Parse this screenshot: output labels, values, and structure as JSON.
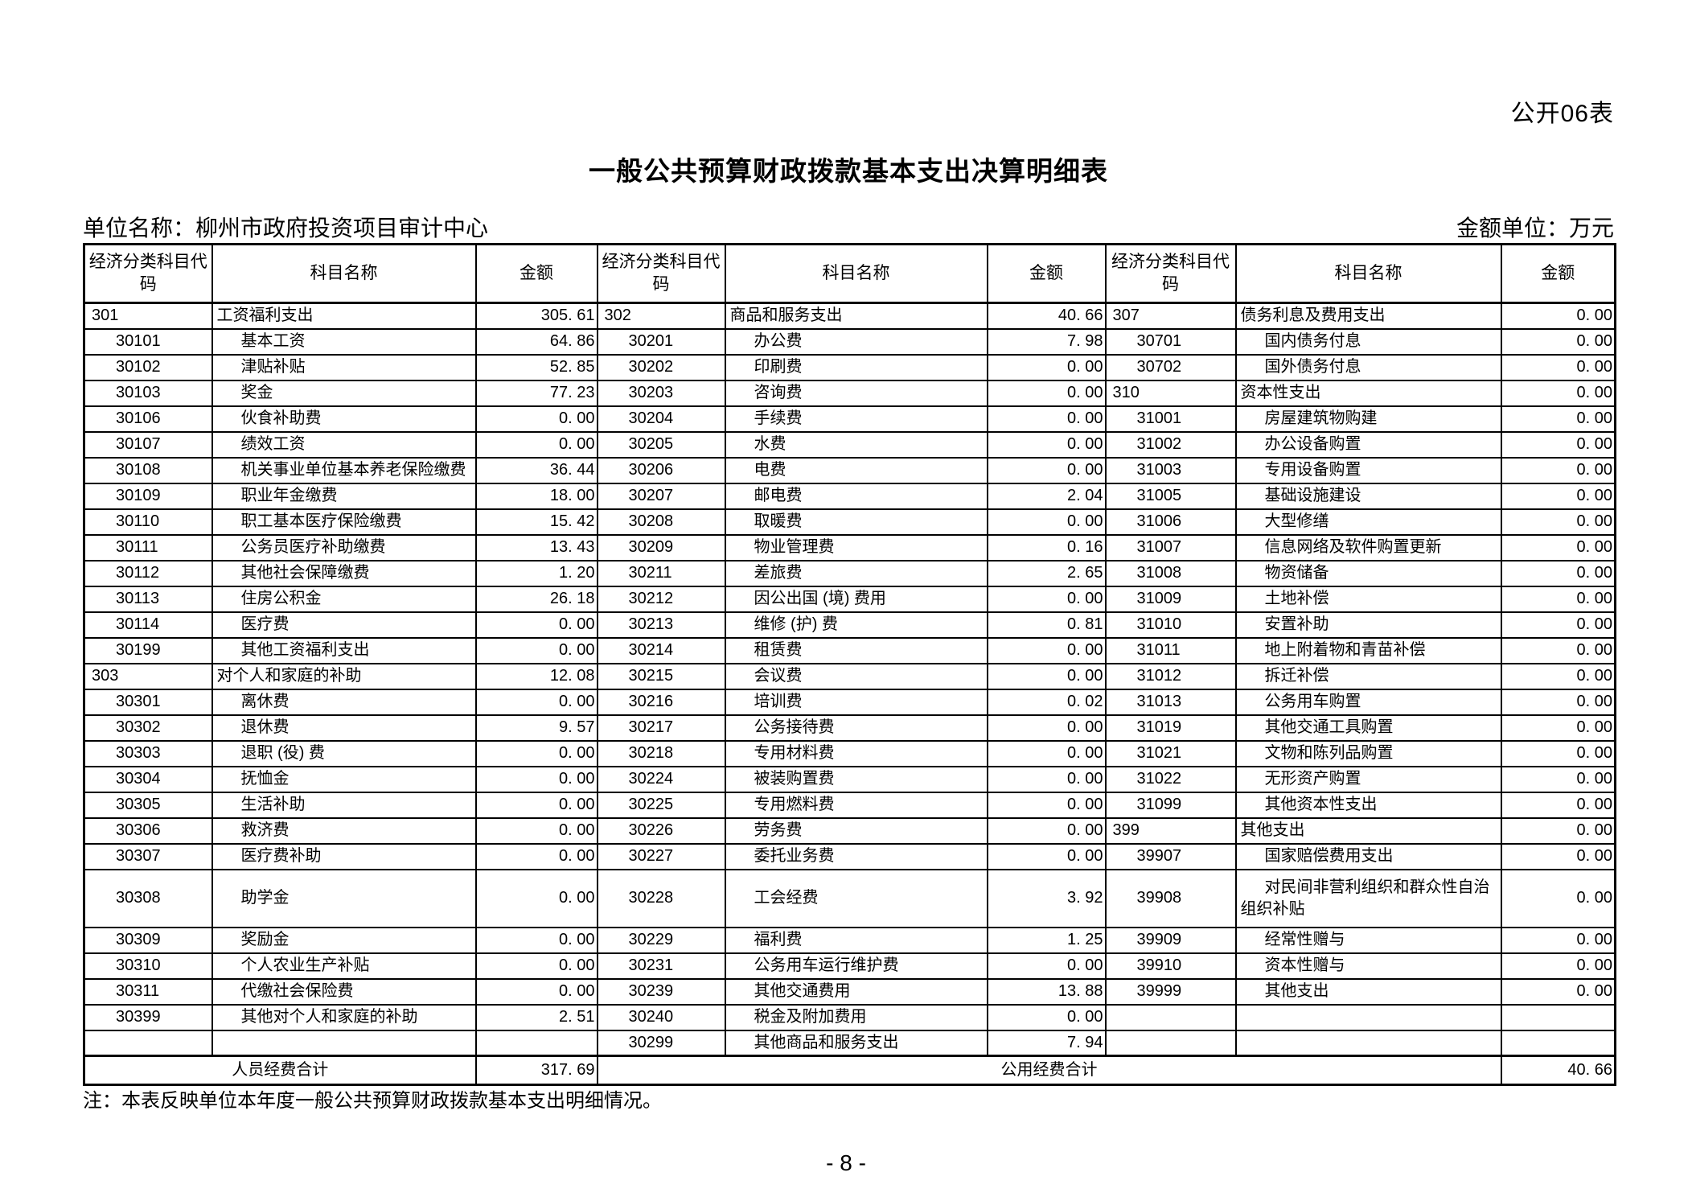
{
  "page": {
    "form_label": "公开06表",
    "title": "一般公共预算财政拨款基本支出决算明细表",
    "unit_name": "单位名称：柳州市政府投资项目审计中心",
    "amount_unit": "金额单位：万元",
    "note": "注：本表反映单位本年度一般公共预算财政拨款基本支出明细情况。",
    "page_number": "- 8 -"
  },
  "table": {
    "header": {
      "code": "经济分类科目代码",
      "name": "科目名称",
      "amount": "金额"
    },
    "footer": {
      "personnel_label": "人员经费合计",
      "personnel_total": "317. 69",
      "public_label": "公用经费合计",
      "public_total": "40. 66"
    },
    "rows": [
      {
        "groups": [
          {
            "code": "301",
            "name": "工资福利支出",
            "amount": "305. 61",
            "level": 1
          },
          {
            "code": "302",
            "name": "商品和服务支出",
            "amount": "40. 66",
            "level": 1
          },
          {
            "code": "307",
            "name": "债务利息及费用支出",
            "amount": "0. 00",
            "level": 1
          }
        ]
      },
      {
        "groups": [
          {
            "code": "30101",
            "name": "基本工资",
            "amount": "64. 86",
            "level": 2
          },
          {
            "code": "30201",
            "name": "办公费",
            "amount": "7. 98",
            "level": 2
          },
          {
            "code": "30701",
            "name": "国内债务付息",
            "amount": "0. 00",
            "level": 2
          }
        ]
      },
      {
        "groups": [
          {
            "code": "30102",
            "name": "津贴补贴",
            "amount": "52. 85",
            "level": 2
          },
          {
            "code": "30202",
            "name": "印刷费",
            "amount": "0. 00",
            "level": 2
          },
          {
            "code": "30702",
            "name": "国外债务付息",
            "amount": "0. 00",
            "level": 2
          }
        ]
      },
      {
        "groups": [
          {
            "code": "30103",
            "name": "奖金",
            "amount": "77. 23",
            "level": 2
          },
          {
            "code": "30203",
            "name": "咨询费",
            "amount": "0. 00",
            "level": 2
          },
          {
            "code": "310",
            "name": "资本性支出",
            "amount": "0. 00",
            "level": 1
          }
        ]
      },
      {
        "groups": [
          {
            "code": "30106",
            "name": "伙食补助费",
            "amount": "0. 00",
            "level": 2
          },
          {
            "code": "30204",
            "name": "手续费",
            "amount": "0. 00",
            "level": 2
          },
          {
            "code": "31001",
            "name": "房屋建筑物购建",
            "amount": "0. 00",
            "level": 2
          }
        ]
      },
      {
        "groups": [
          {
            "code": "30107",
            "name": "绩效工资",
            "amount": "0. 00",
            "level": 2
          },
          {
            "code": "30205",
            "name": "水费",
            "amount": "0. 00",
            "level": 2
          },
          {
            "code": "31002",
            "name": "办公设备购置",
            "amount": "0. 00",
            "level": 2
          }
        ]
      },
      {
        "groups": [
          {
            "code": "30108",
            "name": "机关事业单位基本养老保险缴费",
            "amount": "36. 44",
            "level": 2
          },
          {
            "code": "30206",
            "name": "电费",
            "amount": "0. 00",
            "level": 2
          },
          {
            "code": "31003",
            "name": "专用设备购置",
            "amount": "0. 00",
            "level": 2
          }
        ]
      },
      {
        "groups": [
          {
            "code": "30109",
            "name": "职业年金缴费",
            "amount": "18. 00",
            "level": 2
          },
          {
            "code": "30207",
            "name": "邮电费",
            "amount": "2. 04",
            "level": 2
          },
          {
            "code": "31005",
            "name": "基础设施建设",
            "amount": "0. 00",
            "level": 2
          }
        ]
      },
      {
        "groups": [
          {
            "code": "30110",
            "name": "职工基本医疗保险缴费",
            "amount": "15. 42",
            "level": 2
          },
          {
            "code": "30208",
            "name": "取暖费",
            "amount": "0. 00",
            "level": 2
          },
          {
            "code": "31006",
            "name": "大型修缮",
            "amount": "0. 00",
            "level": 2
          }
        ]
      },
      {
        "groups": [
          {
            "code": "30111",
            "name": "公务员医疗补助缴费",
            "amount": "13. 43",
            "level": 2
          },
          {
            "code": "30209",
            "name": "物业管理费",
            "amount": "0. 16",
            "level": 2
          },
          {
            "code": "31007",
            "name": "信息网络及软件购置更新",
            "amount": "0. 00",
            "level": 2
          }
        ]
      },
      {
        "groups": [
          {
            "code": "30112",
            "name": "其他社会保障缴费",
            "amount": "1. 20",
            "level": 2
          },
          {
            "code": "30211",
            "name": "差旅费",
            "amount": "2. 65",
            "level": 2
          },
          {
            "code": "31008",
            "name": "物资储备",
            "amount": "0. 00",
            "level": 2
          }
        ]
      },
      {
        "groups": [
          {
            "code": "30113",
            "name": "住房公积金",
            "amount": "26. 18",
            "level": 2
          },
          {
            "code": "30212",
            "name": "因公出国 (境) 费用",
            "amount": "0. 00",
            "level": 2
          },
          {
            "code": "31009",
            "name": "土地补偿",
            "amount": "0. 00",
            "level": 2
          }
        ]
      },
      {
        "groups": [
          {
            "code": "30114",
            "name": "医疗费",
            "amount": "0. 00",
            "level": 2
          },
          {
            "code": "30213",
            "name": "维修 (护) 费",
            "amount": "0. 81",
            "level": 2
          },
          {
            "code": "31010",
            "name": "安置补助",
            "amount": "0. 00",
            "level": 2
          }
        ]
      },
      {
        "groups": [
          {
            "code": "30199",
            "name": "其他工资福利支出",
            "amount": "0. 00",
            "level": 2
          },
          {
            "code": "30214",
            "name": "租赁费",
            "amount": "0. 00",
            "level": 2
          },
          {
            "code": "31011",
            "name": "地上附着物和青苗补偿",
            "amount": "0. 00",
            "level": 2
          }
        ]
      },
      {
        "groups": [
          {
            "code": "303",
            "name": "对个人和家庭的补助",
            "amount": "12. 08",
            "level": 1
          },
          {
            "code": "30215",
            "name": "会议费",
            "amount": "0. 00",
            "level": 2
          },
          {
            "code": "31012",
            "name": "拆迁补偿",
            "amount": "0. 00",
            "level": 2
          }
        ]
      },
      {
        "groups": [
          {
            "code": "30301",
            "name": "离休费",
            "amount": "0. 00",
            "level": 2
          },
          {
            "code": "30216",
            "name": "培训费",
            "amount": "0. 02",
            "level": 2
          },
          {
            "code": "31013",
            "name": "公务用车购置",
            "amount": "0. 00",
            "level": 2
          }
        ]
      },
      {
        "groups": [
          {
            "code": "30302",
            "name": "退休费",
            "amount": "9. 57",
            "level": 2
          },
          {
            "code": "30217",
            "name": "公务接待费",
            "amount": "0. 00",
            "level": 2
          },
          {
            "code": "31019",
            "name": "其他交通工具购置",
            "amount": "0. 00",
            "level": 2
          }
        ]
      },
      {
        "groups": [
          {
            "code": "30303",
            "name": "退职 (役) 费",
            "amount": "0. 00",
            "level": 2
          },
          {
            "code": "30218",
            "name": "专用材料费",
            "amount": "0. 00",
            "level": 2
          },
          {
            "code": "31021",
            "name": "文物和陈列品购置",
            "amount": "0. 00",
            "level": 2
          }
        ]
      },
      {
        "groups": [
          {
            "code": "30304",
            "name": "抚恤金",
            "amount": "0. 00",
            "level": 2
          },
          {
            "code": "30224",
            "name": "被装购置费",
            "amount": "0. 00",
            "level": 2
          },
          {
            "code": "31022",
            "name": "无形资产购置",
            "amount": "0. 00",
            "level": 2
          }
        ]
      },
      {
        "groups": [
          {
            "code": "30305",
            "name": "生活补助",
            "amount": "0. 00",
            "level": 2
          },
          {
            "code": "30225",
            "name": "专用燃料费",
            "amount": "0. 00",
            "level": 2
          },
          {
            "code": "31099",
            "name": "其他资本性支出",
            "amount": "0. 00",
            "level": 2
          }
        ]
      },
      {
        "groups": [
          {
            "code": "30306",
            "name": "救济费",
            "amount": "0. 00",
            "level": 2
          },
          {
            "code": "30226",
            "name": "劳务费",
            "amount": "0. 00",
            "level": 2
          },
          {
            "code": "399",
            "name": "其他支出",
            "amount": "0. 00",
            "level": 1
          }
        ]
      },
      {
        "groups": [
          {
            "code": "30307",
            "name": "医疗费补助",
            "amount": "0. 00",
            "level": 2
          },
          {
            "code": "30227",
            "name": "委托业务费",
            "amount": "0. 00",
            "level": 2
          },
          {
            "code": "39907",
            "name": "国家赔偿费用支出",
            "amount": "0. 00",
            "level": 2
          }
        ]
      },
      {
        "tall": true,
        "groups": [
          {
            "code": "30308",
            "name": "助学金",
            "amount": "0. 00",
            "level": 2
          },
          {
            "code": "30228",
            "name": "工会经费",
            "amount": "3. 92",
            "level": 2
          },
          {
            "code": "39908",
            "name": "对民间非营利组织和群众性自治组织补贴",
            "amount": "0. 00",
            "level": 2
          }
        ]
      },
      {
        "groups": [
          {
            "code": "30309",
            "name": "奖励金",
            "amount": "0. 00",
            "level": 2
          },
          {
            "code": "30229",
            "name": "福利费",
            "amount": "1. 25",
            "level": 2
          },
          {
            "code": "39909",
            "name": "经常性赠与",
            "amount": "0. 00",
            "level": 2
          }
        ]
      },
      {
        "groups": [
          {
            "code": "30310",
            "name": "个人农业生产补贴",
            "amount": "0. 00",
            "level": 2
          },
          {
            "code": "30231",
            "name": "公务用车运行维护费",
            "amount": "0. 00",
            "level": 2
          },
          {
            "code": "39910",
            "name": "资本性赠与",
            "amount": "0. 00",
            "level": 2
          }
        ]
      },
      {
        "groups": [
          {
            "code": "30311",
            "name": "代缴社会保险费",
            "amount": "0. 00",
            "level": 2
          },
          {
            "code": "30239",
            "name": "其他交通费用",
            "amount": "13. 88",
            "level": 2
          },
          {
            "code": "39999",
            "name": "其他支出",
            "amount": "0. 00",
            "level": 2
          }
        ]
      },
      {
        "groups": [
          {
            "code": "30399",
            "name": "其他对个人和家庭的补助",
            "amount": "2. 51",
            "level": 2
          },
          {
            "code": "30240",
            "name": "税金及附加费用",
            "amount": "0. 00",
            "level": 2
          },
          null
        ]
      },
      {
        "groups": [
          null,
          {
            "code": "30299",
            "name": "其他商品和服务支出",
            "amount": "7. 94",
            "level": 2
          },
          null
        ]
      }
    ]
  }
}
